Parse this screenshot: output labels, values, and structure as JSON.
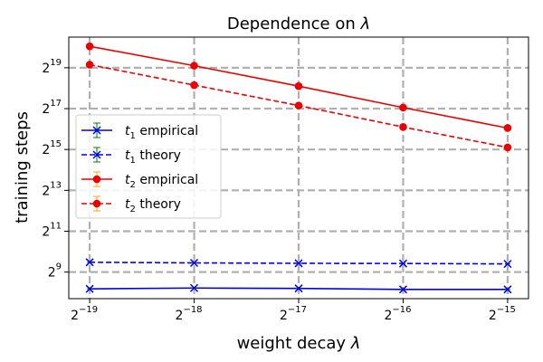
{
  "chart_data": {
    "type": "line",
    "title": "Dependence on λ",
    "title_prefix": "Dependence on ",
    "title_symbol": "λ",
    "xlabel": "weight decay λ",
    "xlabel_prefix": "weight decay ",
    "xlabel_symbol": "λ",
    "ylabel": "training steps",
    "x_scale": "log2",
    "y_scale": "log2",
    "x_exponents": [
      -19,
      -18,
      -17,
      -16,
      -15
    ],
    "x_tick_base": "2",
    "x_tick_exponents": [
      "−19",
      "−18",
      "−17",
      "−16",
      "−15"
    ],
    "y_tick_base": "2",
    "y_tick_exponents": [
      "9",
      "11",
      "13",
      "15",
      "17",
      "19"
    ],
    "y_tick_values": [
      9,
      11,
      13,
      15,
      17,
      19
    ],
    "xlim_log2": [
      -19.2,
      -14.8
    ],
    "ylim_log2": [
      7.7,
      20.5
    ],
    "grid": true,
    "legend_location": "center-left",
    "series": [
      {
        "name": "t1 empirical",
        "legend_base": "t",
        "legend_sub": "1",
        "legend_rest": " empirical",
        "color": "#0000ee",
        "linestyle": "solid",
        "marker": "x",
        "errorbar_color": "#008000",
        "log2_values": [
          8.18,
          8.22,
          8.2,
          8.15,
          8.15
        ]
      },
      {
        "name": "t1 theory",
        "legend_base": "t",
        "legend_sub": "1",
        "legend_rest": " theory",
        "color": "#0000ee",
        "linestyle": "dashed",
        "marker": "x",
        "errorbar_color": "#008000",
        "log2_values": [
          9.48,
          9.45,
          9.43,
          9.42,
          9.4
        ]
      },
      {
        "name": "t2 empirical",
        "legend_base": "t",
        "legend_sub": "2",
        "legend_rest": " empirical",
        "color": "#ee0000",
        "linestyle": "solid",
        "marker": "o",
        "errorbar_color": "#ffa500",
        "log2_values": [
          20.05,
          19.1,
          18.1,
          17.05,
          16.05
        ]
      },
      {
        "name": "t2 theory",
        "legend_base": "t",
        "legend_sub": "2",
        "legend_rest": " theory",
        "color": "#ee0000",
        "linestyle": "dashed",
        "marker": "o",
        "errorbar_color": "#ffa500",
        "log2_values": [
          19.15,
          18.15,
          17.15,
          16.1,
          15.1
        ]
      }
    ]
  }
}
